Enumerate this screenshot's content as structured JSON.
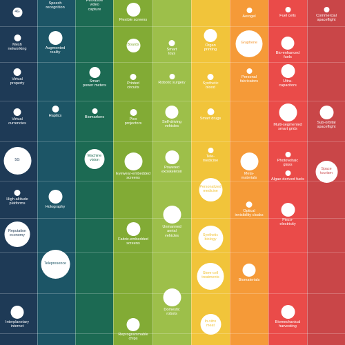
{
  "columns": [
    {
      "color": "#1e3a56"
    },
    {
      "color": "#1c5566"
    },
    {
      "color": "#1c6a53"
    },
    {
      "color": "#82ab35"
    },
    {
      "color": "#9dbf4a"
    },
    {
      "color": "#f1c43a"
    },
    {
      "color": "#f59a38"
    },
    {
      "color": "#ea4b49"
    },
    {
      "color": "#c94648"
    }
  ],
  "technologies": [
    {
      "name": "4G",
      "inner": true
    },
    {
      "name": "Mesh\nnetworking",
      "inner": false
    },
    {
      "name": "Virtual\nproperty",
      "inner": false
    },
    {
      "name": "Virtual\ncurrencies",
      "inner": false
    },
    {
      "name": "5G",
      "inner": true
    },
    {
      "name": "High-altitude\nplatforms",
      "inner": false
    },
    {
      "name": "Reputation\neconomy",
      "inner": true
    },
    {
      "name": "Interplanetary\ninternet",
      "inner": false
    },
    {
      "name": "Speech\nrecognition",
      "inner": false
    },
    {
      "name": "Augmented\nreality",
      "inner": false
    },
    {
      "name": "Haptics",
      "inner": false
    },
    {
      "name": "Holography",
      "inner": false
    },
    {
      "name": "Telepresence",
      "inner": true
    },
    {
      "name": "Pervasive\nvideo\ncapture",
      "inner": false
    },
    {
      "name": "Smart\npower meters",
      "inner": false
    },
    {
      "name": "Biomarkers",
      "inner": false
    },
    {
      "name": "Machine\nvision",
      "inner": true
    },
    {
      "name": "Flexible screens",
      "inner": false
    },
    {
      "name": "Boards",
      "inner": true
    },
    {
      "name": "Printed\ncircuits",
      "inner": false
    },
    {
      "name": "Pico\nprojectors",
      "inner": false
    },
    {
      "name": "Eyewear-embedded\nscreens",
      "inner": false
    },
    {
      "name": "Fabric-embedded\nscreens",
      "inner": false
    },
    {
      "name": "Reprogrammable\nchips",
      "inner": false
    },
    {
      "name": "Smart\ntoys",
      "inner": false
    },
    {
      "name": "Robotic surgery",
      "inner": false
    },
    {
      "name": "Self-driving\nvehicles",
      "inner": false
    },
    {
      "name": "Powered\nexoskeleton",
      "inner": false
    },
    {
      "name": "Unmanned\naerial\nvehicles",
      "inner": false
    },
    {
      "name": "Domestic\nrobots",
      "inner": false
    },
    {
      "name": "Organ\nprinting",
      "inner": false
    },
    {
      "name": "Synthetic\nblood",
      "inner": false
    },
    {
      "name": "Smart drugs",
      "inner": false
    },
    {
      "name": "Tele-\nmedicine",
      "inner": false
    },
    {
      "name": "Personalized\nmedicine",
      "inner": true
    },
    {
      "name": "Synthetic\nbiology",
      "inner": true
    },
    {
      "name": "Stem-cell\ntreatments",
      "inner": true
    },
    {
      "name": "In-vitro\nmeat",
      "inner": true
    },
    {
      "name": "Aerogel",
      "inner": false
    },
    {
      "name": "Graphene",
      "inner": true
    },
    {
      "name": "Personal\nfabricators",
      "inner": false
    },
    {
      "name": "Meta-\nmaterials",
      "inner": false
    },
    {
      "name": "Optical\ninvisibility cloaks",
      "inner": false
    },
    {
      "name": "Biomaterials",
      "inner": false
    },
    {
      "name": "Fuel cells",
      "inner": false
    },
    {
      "name": "Bio-enhanced\nfuels",
      "inner": false
    },
    {
      "name": "Ultra-\ncapacitors",
      "inner": false
    },
    {
      "name": "Multi-segmented\nsmart grids",
      "inner": false
    },
    {
      "name": "Photovoltaic\nglass",
      "inner": false
    },
    {
      "name": "Algae-derived fuels",
      "inner": false
    },
    {
      "name": "Piezo-\nelectricity",
      "inner": false
    },
    {
      "name": "Biomechanical\nharvesting",
      "inner": false
    },
    {
      "name": "Commercial\nspaceflight",
      "inner": false
    },
    {
      "name": "Sub-orbital\nspaceflight",
      "inner": false
    },
    {
      "name": "Space\ntourism",
      "inner": true
    }
  ]
}
